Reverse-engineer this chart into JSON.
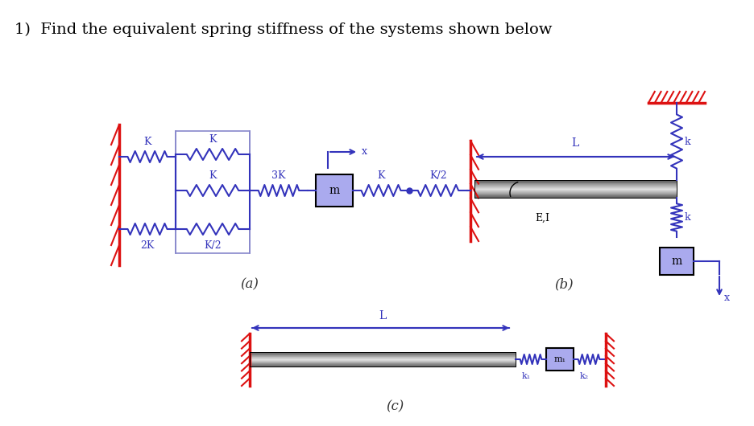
{
  "title": "1)  Find the equivalent spring stiffness of the systems shown below",
  "title_fontsize": 14,
  "title_color": "#000000",
  "bg_color": "#ffffff",
  "blue": "#3333bb",
  "red": "#dd1111",
  "label_a": "(a)",
  "label_b": "(b)",
  "label_c": "(c)"
}
